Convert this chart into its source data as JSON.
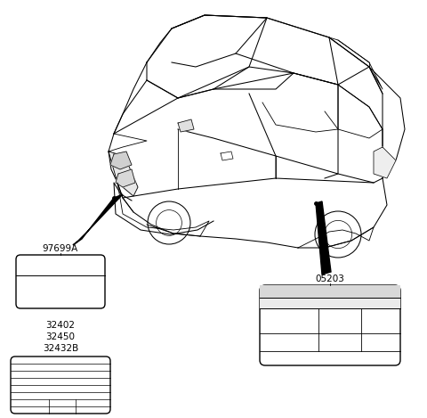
{
  "background_color": "#ffffff",
  "label1_code": "97699A",
  "label2_codes": [
    "32402",
    "32450",
    "32432B"
  ],
  "label3_code": "05203",
  "figsize": [
    4.8,
    4.69
  ],
  "dpi": 100
}
